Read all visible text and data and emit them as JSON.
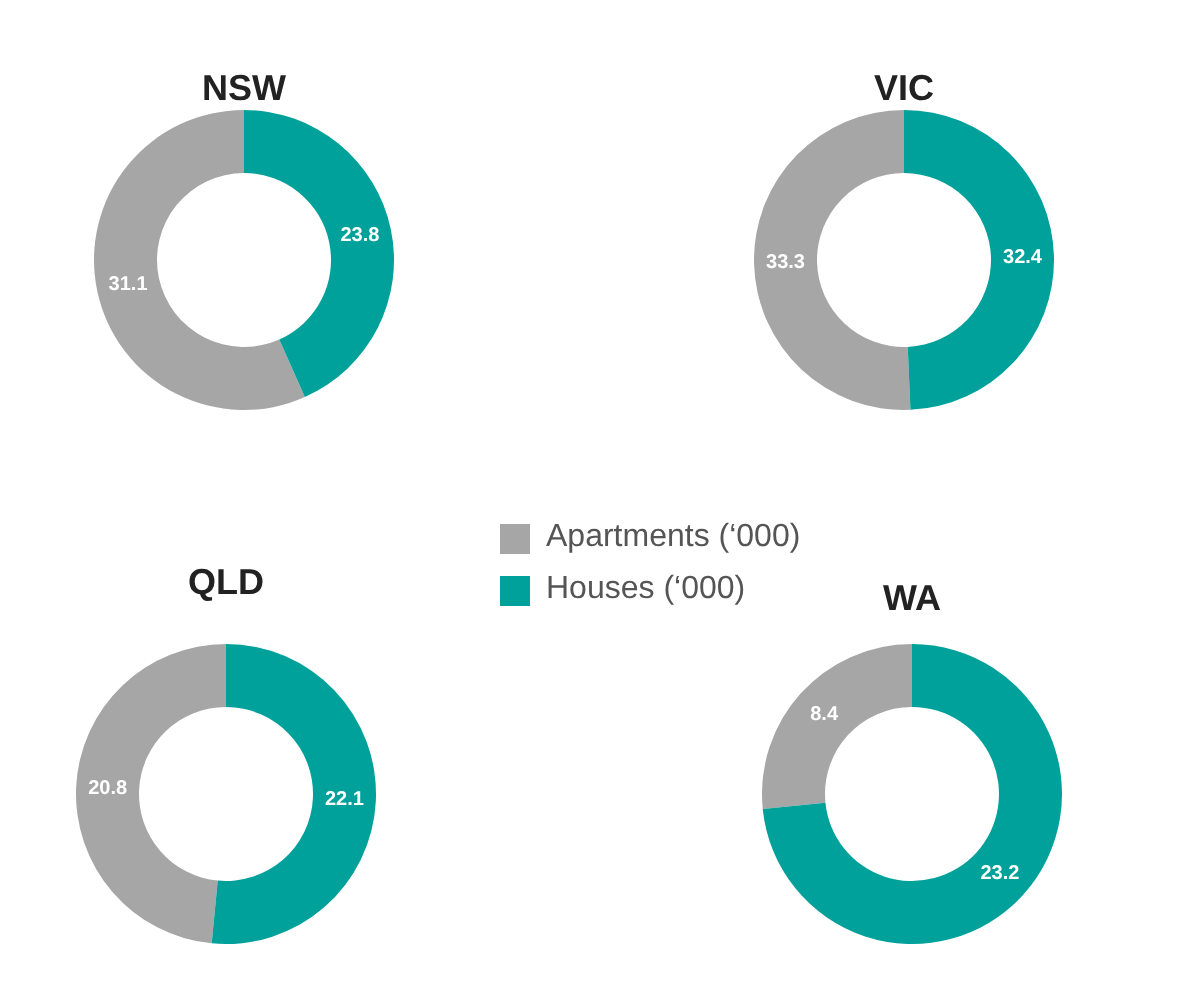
{
  "chart_data": [
    {
      "type": "donut",
      "title": "NSW",
      "categories": [
        "Apartments (‘000)",
        "Houses (‘000)"
      ],
      "values": [
        31.1,
        23.8
      ],
      "colors": [
        "#a6a6a6",
        "#00a19a"
      ],
      "data_labels": true,
      "legend": "bottom right"
    },
    {
      "type": "donut",
      "title": "VIC",
      "categories": [
        null,
        null
      ],
      "values": [
        33.3,
        32.4
      ],
      "colors": [
        "#a6a6a6",
        "#00a19a"
      ],
      "data_labels": true
    },
    {
      "type": "donut",
      "title": "QLD",
      "categories": [
        null,
        null
      ],
      "values": [
        20.8,
        22.1
      ],
      "colors": [
        "#a6a6a6",
        "#00a19a"
      ],
      "data_labels": true
    },
    {
      "type": "donut",
      "title": "WA",
      "categories": [
        null,
        null
      ],
      "values": [
        8.4,
        23.2
      ],
      "colors": [
        "#a6a6a6",
        "#00a19a"
      ],
      "data_labels": true
    }
  ]
}
